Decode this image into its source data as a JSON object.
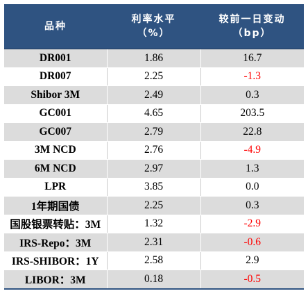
{
  "header": {
    "col1": "品种",
    "col2_line1": "利率水平",
    "col2_line2": "（%）",
    "col3_line1": "较前一日变动",
    "col3_line2": "（bp）"
  },
  "rows": [
    {
      "name": "DR001",
      "rate": "1.86",
      "change": "16.7"
    },
    {
      "name": "DR007",
      "rate": "2.25",
      "change": "-1.3"
    },
    {
      "name": "Shibor 3M",
      "rate": "2.49",
      "change": "0.3"
    },
    {
      "name": "GC001",
      "rate": "4.65",
      "change": "203.5"
    },
    {
      "name": "GC007",
      "rate": "2.79",
      "change": "22.8"
    },
    {
      "name": "3M NCD",
      "rate": "2.76",
      "change": "-4.9"
    },
    {
      "name": "6M NCD",
      "rate": "2.97",
      "change": "1.3"
    },
    {
      "name": "LPR",
      "rate": "3.85",
      "change": "0.0"
    },
    {
      "name": "1年期国债",
      "rate": "2.25",
      "change": "0.3"
    },
    {
      "name": "国股银票转贴：3M",
      "rate": "1.32",
      "change": "-2.9"
    },
    {
      "name": "IRS-Repo：3M",
      "rate": "2.31",
      "change": "-0.6"
    },
    {
      "name": "IRS-SHIBOR：1Y",
      "rate": "2.58",
      "change": "2.9"
    },
    {
      "name": "LIBOR：3M",
      "rate": "0.18",
      "change": "-0.5"
    }
  ],
  "colors": {
    "header_bg": "#2f5381",
    "header_text": "#ffffff",
    "stripe": "#dcdcdc",
    "negative": "#ff0000"
  }
}
